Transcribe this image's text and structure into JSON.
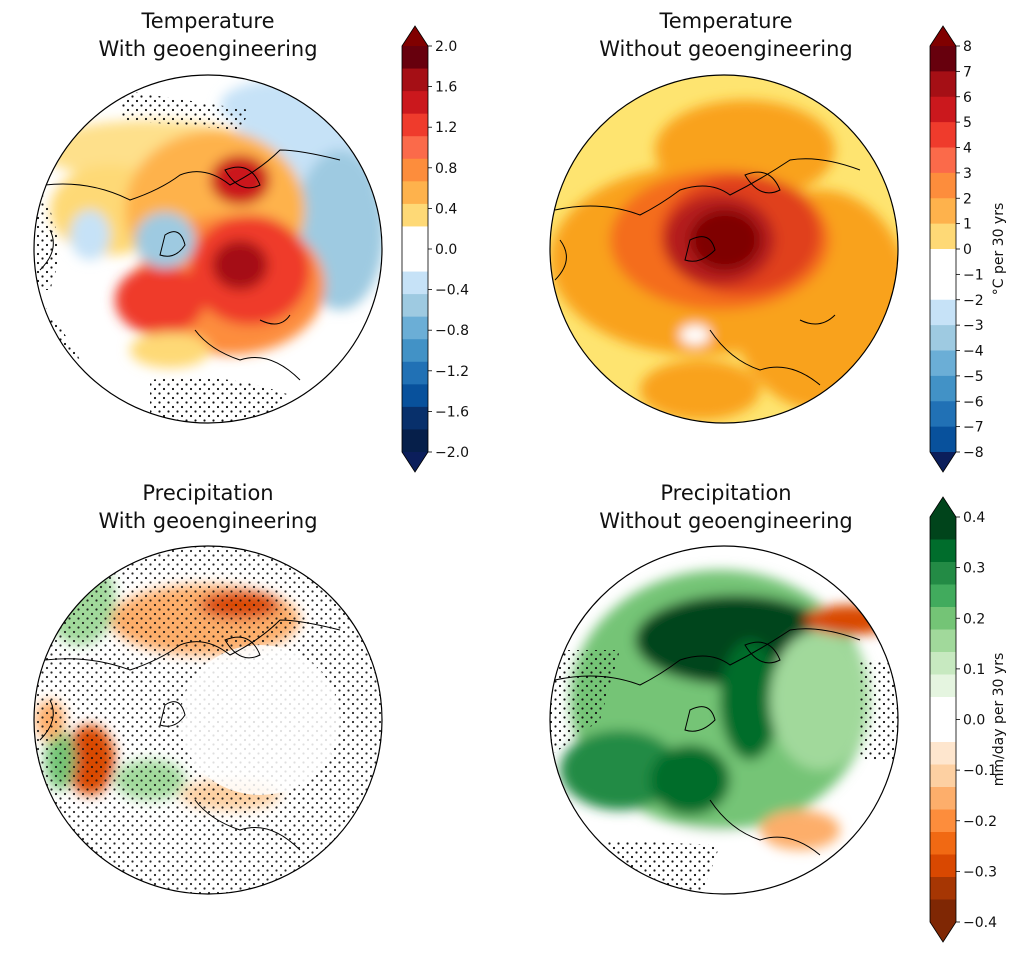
{
  "panels": [
    {
      "title_line1": "Temperature",
      "title_line2": "With geoengineering",
      "variable": "temperature",
      "scenario": "with"
    },
    {
      "title_line1": "Temperature",
      "title_line2": "Without geoengineering",
      "variable": "temperature",
      "scenario": "without"
    },
    {
      "title_line1": "Precipitation",
      "title_line2": "With geoengineering",
      "variable": "precipitation",
      "scenario": "with"
    },
    {
      "title_line1": "Precipitation",
      "title_line2": "Without geoengineering",
      "variable": "precipitation",
      "scenario": "without"
    }
  ],
  "colorbars": {
    "temp_with": {
      "ticks": [
        "2.0",
        "1.6",
        "1.2",
        "0.8",
        "0.4",
        "0.0",
        "−0.4",
        "−0.8",
        "−1.2",
        "−1.6",
        "−2.0"
      ],
      "colors": [
        "#67000d",
        "#a50f15",
        "#cb181d",
        "#ef3b2c",
        "#fb6a4a",
        "#fd8d3c",
        "#feb24c",
        "#fed976",
        "#ffffff",
        "#ffffff",
        "#c6e2f7",
        "#9ecae1",
        "#6baed6",
        "#4292c6",
        "#2171b5",
        "#08519c",
        "#08306b",
        "#061f4a"
      ],
      "extend_top": "#800000",
      "extend_bottom": "#0b1e5b",
      "label": ""
    },
    "temp_without": {
      "ticks": [
        "8",
        "7",
        "6",
        "5",
        "4",
        "3",
        "2",
        "1",
        "0",
        "−1",
        "−2",
        "−3",
        "−4",
        "−5",
        "−6",
        "−7",
        "−8"
      ],
      "label": "°C per 30 yrs",
      "extend_top": "#800000",
      "extend_bottom": "#0b1e5b"
    },
    "precip": {
      "ticks": [
        "0.4",
        "0.3",
        "0.2",
        "0.1",
        "0.0",
        "−0.1",
        "−0.2",
        "−0.3",
        "−0.4"
      ],
      "label": "mm/day per 30 yrs",
      "colors": [
        "#00441b",
        "#006d2c",
        "#238b45",
        "#41ab5d",
        "#74c476",
        "#a1d99b",
        "#c7e9c0",
        "#e5f5e0",
        "#ffffff",
        "#ffffff",
        "#fee6ce",
        "#fdd0a2",
        "#fdae6b",
        "#fd8d3c",
        "#f16913",
        "#d94801",
        "#a63603",
        "#7f2704"
      ],
      "extend_top": "#00441b",
      "extend_bottom": "#7f2704"
    }
  },
  "chart_data": [
    {
      "type": "heatmap",
      "title": "Temperature\nWith geoengineering",
      "projection": "north-polar stereographic",
      "colorbar_ticks": [
        2.0,
        1.6,
        1.2,
        0.8,
        0.4,
        0.0,
        -0.4,
        -0.8,
        -1.2,
        -1.6,
        -2.0
      ],
      "colorbar_range": [
        -2.0,
        2.0
      ],
      "stippling": true
    },
    {
      "type": "heatmap",
      "title": "Temperature\nWithout geoengineering",
      "projection": "north-polar stereographic",
      "colorbar_ticks": [
        8,
        7,
        6,
        5,
        4,
        3,
        2,
        1,
        0,
        -1,
        -2,
        -3,
        -4,
        -5,
        -6,
        -7,
        -8
      ],
      "colorbar_range": [
        -8,
        8
      ],
      "colorbar_label": "°C per 30 yrs",
      "stippling": false
    },
    {
      "type": "heatmap",
      "title": "Precipitation\nWith geoengineering",
      "projection": "north-polar stereographic",
      "colorbar_ticks": [
        0.4,
        0.3,
        0.2,
        0.1,
        0.0,
        -0.1,
        -0.2,
        -0.3,
        -0.4
      ],
      "colorbar_range": [
        -0.4,
        0.4
      ],
      "colorbar_label": "mm/day per 30 yrs",
      "stippling": true
    },
    {
      "type": "heatmap",
      "title": "Precipitation\nWithout geoengineering",
      "projection": "north-polar stereographic",
      "colorbar_ticks": [
        0.4,
        0.3,
        0.2,
        0.1,
        0.0,
        -0.1,
        -0.2,
        -0.3,
        -0.4
      ],
      "colorbar_range": [
        -0.4,
        0.4
      ],
      "colorbar_label": "mm/day per 30 yrs",
      "stippling": true
    }
  ]
}
